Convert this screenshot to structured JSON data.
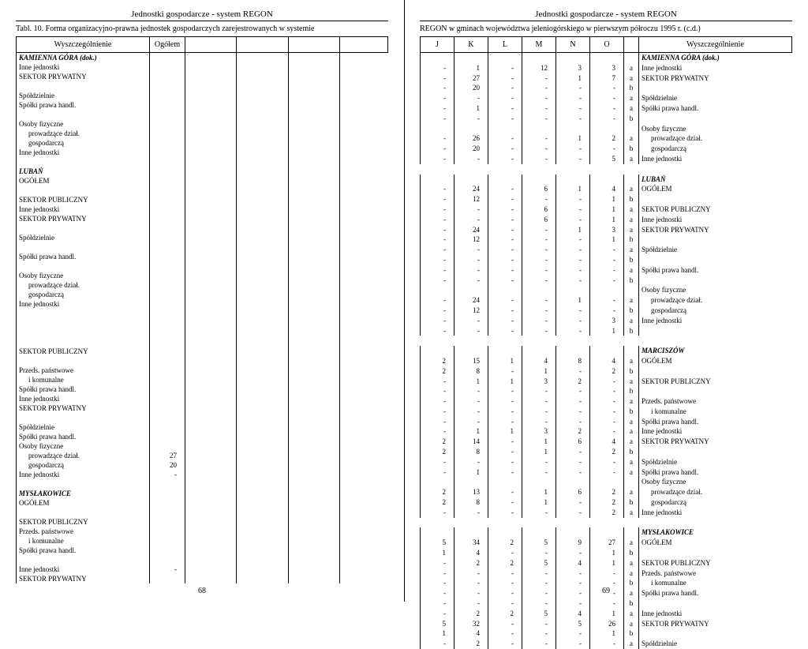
{
  "header": "Jednostki gospodarcze - system REGON",
  "left": {
    "subheader": "Tabl. 10. Forma organizacyjno-prawna jednostek gospodarczych zarejestrowanych w systemie",
    "col_label": "Wyszczególnienie",
    "col_total": "Ogółem",
    "pagenum": "68",
    "rows": [
      {
        "label": "KAMIENNA GÓRA (dok.)",
        "cls": "bold-italic"
      },
      {
        "label": "Inne jednostki"
      },
      {
        "label": "SEKTOR PRYWATNY"
      },
      {
        "label": ""
      },
      {
        "label": "Spółdzielnie"
      },
      {
        "label": "Spółki prawa handl."
      },
      {
        "label": ""
      },
      {
        "label": "Osoby fizyczne"
      },
      {
        "label": "prowadzące dział.",
        "cls": "indent"
      },
      {
        "label": "gospodarczą",
        "cls": "indent"
      },
      {
        "label": "Inne jednostki"
      },
      {
        "label": ""
      },
      {
        "label": "LUBAŃ",
        "cls": "bold-italic"
      },
      {
        "label": "OGÓŁEM"
      },
      {
        "label": ""
      },
      {
        "label": "SEKTOR PUBLICZNY"
      },
      {
        "label": "Inne jednostki"
      },
      {
        "label": "SEKTOR PRYWATNY"
      },
      {
        "label": ""
      },
      {
        "label": "Spółdzielnie"
      },
      {
        "label": ""
      },
      {
        "label": "Spółki prawa handl."
      },
      {
        "label": ""
      },
      {
        "label": "Osoby fizyczne"
      },
      {
        "label": "prowadzące dział.",
        "cls": "indent"
      },
      {
        "label": "gospodarczą",
        "cls": "indent"
      },
      {
        "label": "Inne jednostki"
      },
      {
        "label": ""
      },
      {
        "label": ""
      },
      {
        "label": ""
      },
      {
        "label": ""
      },
      {
        "label": "SEKTOR PUBLICZNY"
      },
      {
        "label": ""
      },
      {
        "label": "Przeds. państwowe"
      },
      {
        "label": "i komunalne",
        "cls": "indent"
      },
      {
        "label": "Spółki prawa handl."
      },
      {
        "label": "Inne jednostki"
      },
      {
        "label": "SEKTOR PRYWATNY"
      },
      {
        "label": ""
      },
      {
        "label": "Spółdzielnie"
      },
      {
        "label": "Spółki prawa handl."
      },
      {
        "label": "Osoby fizyczne"
      },
      {
        "label": "prowadzące dział.",
        "cls": "indent",
        "og": "27"
      },
      {
        "label": "gospodarczą",
        "cls": "indent",
        "og": "20"
      },
      {
        "label": "Inne jednostki",
        "og": "-"
      },
      {
        "label": ""
      },
      {
        "label": "MYSŁAKOWICE",
        "cls": "bold-italic"
      },
      {
        "label": "OGÓŁEM"
      },
      {
        "label": ""
      },
      {
        "label": "SEKTOR PUBLICZNY"
      },
      {
        "label": "Przeds. państwowe"
      },
      {
        "label": "i komunalne",
        "cls": "indent"
      },
      {
        "label": "Spółki prawa handl."
      },
      {
        "label": ""
      },
      {
        "label": "Inne jednostki",
        "og": "-"
      },
      {
        "label": "SEKTOR PRYWATNY"
      }
    ]
  },
  "right": {
    "subheader": "REGON w gminach województwa jeleniogórskiego w pierwszym półroczu 1995 r. (c.d.)",
    "pagenum": "69",
    "cols": [
      "J",
      "K",
      "L",
      "M",
      "N",
      "O"
    ],
    "col_label": "Wyszczególnienie",
    "rows": [
      {
        "rlab": "KAMIENNA GÓRA (dok.)",
        "cls": "bold-italic"
      },
      {
        "v": [
          "-",
          "1",
          "-",
          "12",
          "3",
          "3"
        ],
        "t": "a",
        "rlab": "Inne jednostki"
      },
      {
        "v": [
          "-",
          "27",
          "-",
          "-",
          "1",
          "7"
        ],
        "t": "a",
        "rlab": "SEKTOR PRYWATNY"
      },
      {
        "v": [
          "-",
          "20",
          "-",
          "-",
          "-",
          "-"
        ],
        "t": "b"
      },
      {
        "v": [
          "-",
          "-",
          "-",
          "-",
          "-",
          "-"
        ],
        "t": "a",
        "rlab": "Spółdzielnie"
      },
      {
        "v": [
          "-",
          "1",
          "-",
          "-",
          "-",
          "-"
        ],
        "t": "a",
        "rlab": "Spółki prawa handl."
      },
      {
        "v": [
          "-",
          "-",
          "-",
          "-",
          "-",
          "-"
        ],
        "t": "b"
      },
      {
        "rlab": "Osoby fizyczne"
      },
      {
        "v": [
          "-",
          "26",
          "-",
          "-",
          "1",
          "2"
        ],
        "t": "a",
        "rlab": "prowadzące dział.",
        "rcls": "indent"
      },
      {
        "v": [
          "-",
          "20",
          "-",
          "-",
          "-",
          "-"
        ],
        "t": "b",
        "rlab": "gospodarczą",
        "rcls": "indent"
      },
      {
        "v": [
          "-",
          "-",
          "-",
          "-",
          "-",
          "5"
        ],
        "t": "a",
        "rlab": "Inne jednostki"
      },
      {
        "gap": true
      },
      {
        "rlab": "LUBAŃ",
        "cls": "bold-italic"
      },
      {
        "v": [
          "-",
          "24",
          "-",
          "6",
          "1",
          "4"
        ],
        "t": "a",
        "rlab": "OGÓŁEM"
      },
      {
        "v": [
          "-",
          "12",
          "-",
          "-",
          "-",
          "1"
        ],
        "t": "b"
      },
      {
        "v": [
          "-",
          "-",
          "-",
          "6",
          "-",
          "1"
        ],
        "t": "a",
        "rlab": "SEKTOR PUBLICZNY"
      },
      {
        "v": [
          "-",
          "-",
          "-",
          "6",
          "-",
          "1"
        ],
        "t": "a",
        "rlab": "Inne jednostki"
      },
      {
        "v": [
          "-",
          "24",
          "-",
          "-",
          "1",
          "3"
        ],
        "t": "a",
        "rlab": "SEKTOR PRYWATNY"
      },
      {
        "v": [
          "-",
          "12",
          "-",
          "-",
          "-",
          "1"
        ],
        "t": "b"
      },
      {
        "v": [
          "-",
          "-",
          "-",
          "-",
          "-",
          "-"
        ],
        "t": "a",
        "rlab": "Spółdzielnie"
      },
      {
        "v": [
          "-",
          "-",
          "-",
          "-",
          "-",
          "-"
        ],
        "t": "b"
      },
      {
        "v": [
          "-",
          "-",
          "-",
          "-",
          "-",
          "-"
        ],
        "t": "a",
        "rlab": "Spółki prawa handl."
      },
      {
        "v": [
          "-",
          "-",
          "-",
          "-",
          "-",
          "-"
        ],
        "t": "b"
      },
      {
        "rlab": "Osoby fizyczne"
      },
      {
        "v": [
          "-",
          "24",
          "-",
          "-",
          "1",
          "-"
        ],
        "t": "a",
        "rlab": "prowadzące dział.",
        "rcls": "indent"
      },
      {
        "v": [
          "-",
          "12",
          "-",
          "-",
          "-",
          "-"
        ],
        "t": "b",
        "rlab": "gospodarczą",
        "rcls": "indent"
      },
      {
        "v": [
          "-",
          "-",
          "-",
          "-",
          "-",
          "3"
        ],
        "t": "a",
        "rlab": "Inne jednostki"
      },
      {
        "v": [
          "-",
          "-",
          "-",
          "-",
          "-",
          "1"
        ],
        "t": "b"
      },
      {
        "gap": true
      },
      {
        "rlab": "MARCISZÓW",
        "cls": "bold-italic"
      },
      {
        "v": [
          "2",
          "15",
          "1",
          "4",
          "8",
          "4"
        ],
        "t": "a",
        "rlab": "OGÓŁEM"
      },
      {
        "v": [
          "2",
          "8",
          "-",
          "1",
          "-",
          "2"
        ],
        "t": "b"
      },
      {
        "v": [
          "-",
          "1",
          "1",
          "3",
          "2",
          "-"
        ],
        "t": "a",
        "rlab": "SEKTOR PUBLICZNY"
      },
      {
        "v": [
          "-",
          "-",
          "-",
          "-",
          "-",
          "-"
        ],
        "t": "b"
      },
      {
        "v": [
          "-",
          "-",
          "-",
          "-",
          "-",
          "-"
        ],
        "t": "a",
        "rlab": "Przeds. państwowe"
      },
      {
        "v": [
          "-",
          "-",
          "-",
          "-",
          "-",
          "-"
        ],
        "t": "b",
        "rlab": "i komunalne",
        "rcls": "indent"
      },
      {
        "v": [
          "-",
          "-",
          "-",
          "-",
          "-",
          "-"
        ],
        "t": "a",
        "rlab": "Spółki prawa handl."
      },
      {
        "v": [
          "-",
          "1",
          "1",
          "3",
          "2",
          "-"
        ],
        "t": "a",
        "rlab": "Inne jednostki"
      },
      {
        "v": [
          "2",
          "14",
          "-",
          "1",
          "6",
          "4"
        ],
        "t": "a",
        "rlab": "SEKTOR PRYWATNY"
      },
      {
        "v": [
          "2",
          "8",
          "-",
          "1",
          "-",
          "2"
        ],
        "t": "b"
      },
      {
        "v": [
          "-",
          "-",
          "-",
          "-",
          "-",
          "-"
        ],
        "t": "a",
        "rlab": "Spółdzielnie"
      },
      {
        "v": [
          "-",
          "1",
          "-",
          "-",
          "-",
          "-"
        ],
        "t": "a",
        "rlab": "Spółki prawa handl."
      },
      {
        "rlab": "Osoby fizyczne"
      },
      {
        "v": [
          "2",
          "13",
          "-",
          "1",
          "6",
          "2"
        ],
        "t": "a",
        "rlab": "prowadzące dział.",
        "rcls": "indent"
      },
      {
        "v": [
          "2",
          "8",
          "-",
          "1",
          "-",
          "2"
        ],
        "t": "b",
        "rlab": "gospodarczą",
        "rcls": "indent"
      },
      {
        "v": [
          "-",
          "-",
          "-",
          "-",
          "-",
          "2"
        ],
        "t": "a",
        "rlab": "Inne jednostki"
      },
      {
        "gap": true
      },
      {
        "rlab": "MYSŁAKOWICE",
        "cls": "bold-italic"
      },
      {
        "v": [
          "5",
          "34",
          "2",
          "5",
          "9",
          "27"
        ],
        "t": "a",
        "rlab": "OGÓŁEM"
      },
      {
        "v": [
          "1",
          "4",
          "-",
          "-",
          "-",
          "1"
        ],
        "t": "b"
      },
      {
        "v": [
          "-",
          "2",
          "2",
          "5",
          "4",
          "1"
        ],
        "t": "a",
        "rlab": "SEKTOR PUBLICZNY"
      },
      {
        "v": [
          "-",
          "-",
          "-",
          "-",
          "-",
          "-"
        ],
        "t": "a",
        "rlab": "Przeds. państwowe"
      },
      {
        "v": [
          "-",
          "-",
          "-",
          "-",
          "-",
          "-"
        ],
        "t": "b",
        "rlab": "i komunalne",
        "rcls": "indent"
      },
      {
        "v": [
          "-",
          "-",
          "-",
          "-",
          "-",
          "-"
        ],
        "t": "a",
        "rlab": "Spółki prawa handl."
      },
      {
        "v": [
          "-",
          "-",
          "-",
          "-",
          "-",
          "-"
        ],
        "t": "b"
      },
      {
        "v": [
          "-",
          "2",
          "2",
          "5",
          "4",
          "1"
        ],
        "t": "a",
        "rlab": "Inne jednostki"
      },
      {
        "v": [
          "5",
          "32",
          "-",
          "-",
          "5",
          "26"
        ],
        "t": "a",
        "rlab": "SEKTOR PRYWATNY"
      },
      {
        "v": [
          "1",
          "4",
          "-",
          "-",
          "-",
          "1"
        ],
        "t": "b"
      },
      {
        "v": [
          "-",
          "2",
          "-",
          "-",
          "-",
          "-"
        ],
        "t": "a",
        "rlab": "Spółdzielnie"
      }
    ]
  }
}
